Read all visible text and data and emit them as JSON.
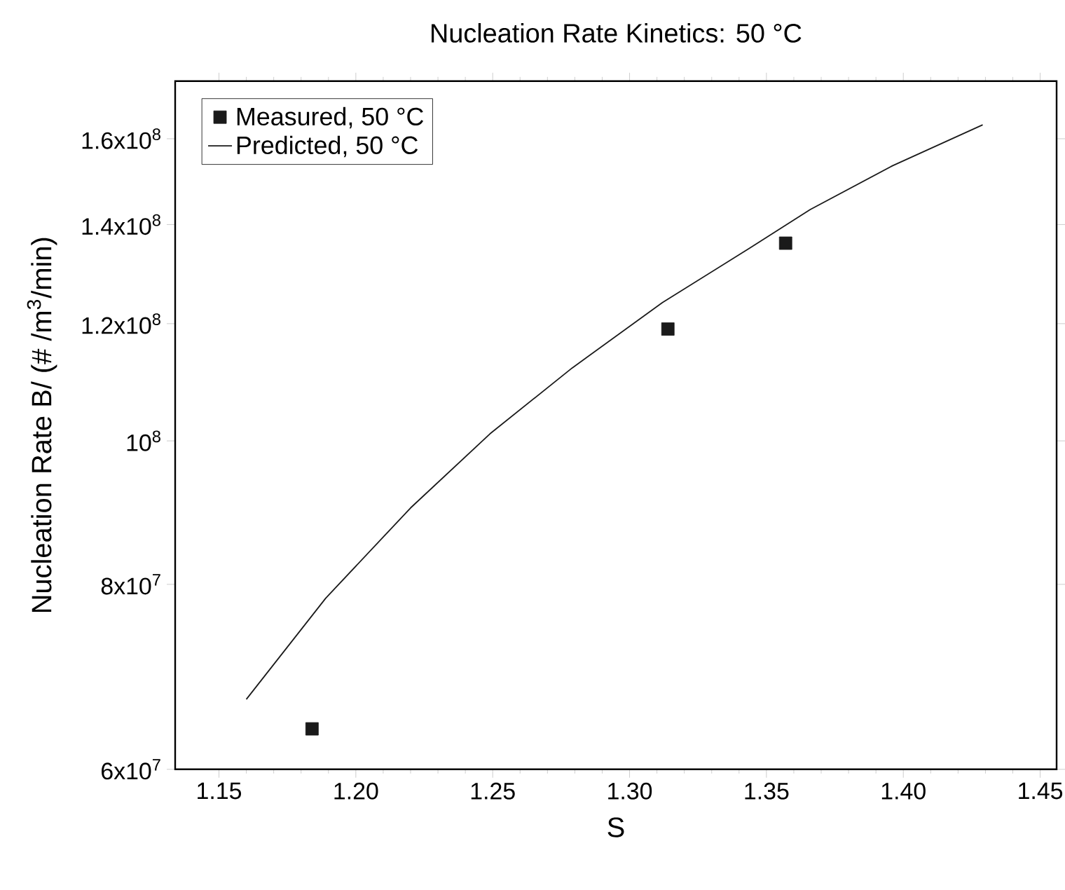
{
  "chart_data": {
    "type": "scatter",
    "title": "Nucleation Rate Kinetics: 50 °C",
    "xlabel": "S",
    "ylabel": "Nucleation Rate B/ (# /m$^{3}$/min)",
    "log": "y",
    "legend": "top left",
    "xlim": [
      1.134,
      1.456
    ],
    "ylim": [
      60000000,
      175000000
    ],
    "xticks": [
      {
        "value": 1.15,
        "label": "1.15"
      },
      {
        "value": 1.2,
        "label": "1.20"
      },
      {
        "value": 1.25,
        "label": "1.25"
      },
      {
        "value": 1.3,
        "label": "1.30"
      },
      {
        "value": 1.35,
        "label": "1.35"
      },
      {
        "value": 1.4,
        "label": "1.40"
      },
      {
        "value": 1.45,
        "label": "1.45"
      }
    ],
    "yticks": [
      {
        "value": 60000000,
        "label": "6x10$^{7}$"
      },
      {
        "value": 80000000,
        "label": "8x10$^{7}$"
      },
      {
        "value": 100000000,
        "label": "10$^{8}$"
      },
      {
        "value": 120000000,
        "label": "1.2x10$^{8}$"
      },
      {
        "value": 140000000,
        "label": "1.4x10$^{8}$"
      },
      {
        "value": 160000000,
        "label": "1.6x10$^{8}$"
      }
    ],
    "series": [
      {
        "name": "Measured, 50 °C",
        "marker": "square",
        "color": "#1a1a1a",
        "x": [
          1.184,
          1.314,
          1.357
        ],
        "values": [
          63900000,
          119000000,
          136000000
        ]
      },
      {
        "name": "Predicted, 50 °C",
        "type": "line",
        "marker": "none",
        "line_style": "solid",
        "color": "#1a1a1a",
        "x": [
          1.16,
          1.189,
          1.22,
          1.249,
          1.279,
          1.312,
          1.344,
          1.366,
          1.396,
          1.429
        ],
        "values": [
          66900000,
          78300000,
          90100000,
          101100000,
          112000000,
          124000000,
          135000000,
          143300000,
          153400000,
          163500000
        ]
      }
    ]
  }
}
